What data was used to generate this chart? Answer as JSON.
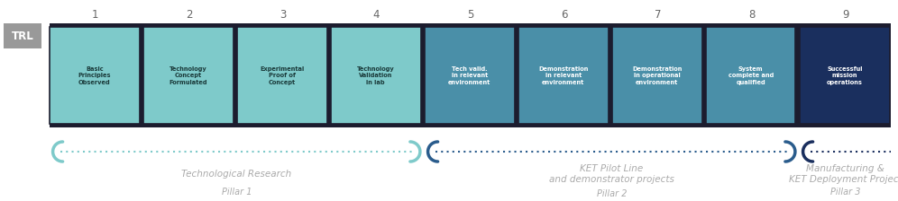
{
  "trl_labels": [
    "1",
    "2",
    "3",
    "4",
    "5",
    "6",
    "7",
    "8",
    "9"
  ],
  "box_texts": [
    "Basic\nPrinciples\nObserved",
    "Technology\nConcept\nFormulated",
    "Experimental\nProof of\nConcept",
    "Technology\nValidation\nin lab",
    "Tech valid.\nin relevant\nenvironment",
    "Demonstration\nin relevant\nenvironment",
    "Demonstration\nin operational\nenvironment",
    "System\ncomplete and\nqualified",
    "Successful\nmission\noperations"
  ],
  "box_colors": [
    "#7ecaca",
    "#7ecaca",
    "#7ecaca",
    "#7ecaca",
    "#4a8fa8",
    "#4a8fa8",
    "#4a8fa8",
    "#4a8fa8",
    "#1a2f5e"
  ],
  "text_colors": [
    "#1a3a3a",
    "#1a3a3a",
    "#1a3a3a",
    "#1a3a3a",
    "#ffffff",
    "#ffffff",
    "#ffffff",
    "#ffffff",
    "#ffffff"
  ],
  "trl_label_color": "#666666",
  "trl_box_bg": "#999999",
  "trl_box_fg": "#ffffff",
  "bar_bg": "#1c1c2e",
  "pillar_colors": [
    "#7ecaca",
    "#2a5c8c",
    "#1a2f5e"
  ],
  "pillar1_label": "Technological Research",
  "pillar1_sublabel": "Pillar 1",
  "pillar2_label": "KET Pilot Line\nand demonstrator projects",
  "pillar2_sublabel": "Pillar 2",
  "pillar3_label": "Manufacturing &\nKET Deployment Project",
  "pillar3_sublabel": "Pillar 3",
  "label_color": "#aaaaaa",
  "figsize": [
    9.96,
    2.24
  ],
  "dpi": 100
}
